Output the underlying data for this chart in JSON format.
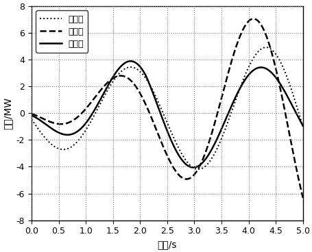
{
  "xlabel": "时间/s",
  "ylabel": "有功/MW",
  "xlim": [
    0,
    5
  ],
  "ylim": [
    -8,
    8
  ],
  "yticks": [
    -8,
    -6,
    -4,
    -2,
    0,
    2,
    4,
    6,
    8
  ],
  "xticks": [
    0,
    0.5,
    1,
    1.5,
    2,
    2.5,
    3,
    3.5,
    4,
    4.5,
    5
  ],
  "legend_labels": [
    "厂七线",
    "厂和线",
    "玉墨线"
  ],
  "bg": "#ffffff",
  "curve1_label": "厂七线",
  "curve1_style": ":",
  "curve1_lw": 1.4,
  "curve2_label": "厂和线",
  "curve2_style": "--",
  "curve2_lw": 1.8,
  "curve3_label": "玉墨线",
  "curve3_style": "-",
  "curve3_lw": 1.8,
  "grid_ls": ":",
  "grid_color": "#777777",
  "grid_lw": 0.8
}
